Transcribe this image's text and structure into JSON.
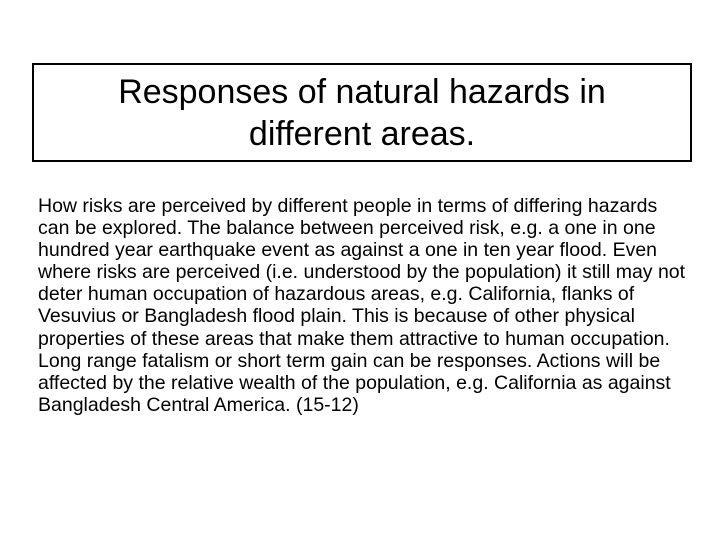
{
  "slide": {
    "colors": {
      "background": "#ffffff",
      "text": "#000000",
      "title_box_border": "#000000"
    },
    "title": {
      "lines": [
        "Responses of natural hazards in",
        "different areas."
      ]
    },
    "body": {
      "lines": [
        "How risks are perceived by different people in terms of differing hazards",
        "can be explored. The balance between perceived risk, e.g. a one in one",
        "hundred year earthquake event as against a one in ten year flood. Even",
        "where risks are perceived (i.e. understood by the population) it still may not",
        "deter human occupation of hazardous areas, e.g. California, flanks of",
        "Vesuvius or Bangladesh flood plain. This is because of other physical",
        "properties of these areas that make them attractive to human occupation.",
        "Long range fatalism or short term gain can be responses. Actions will be",
        "affected by the relative wealth of the population, e.g. California as against",
        "Bangladesh Central America. (15-12)"
      ]
    }
  }
}
